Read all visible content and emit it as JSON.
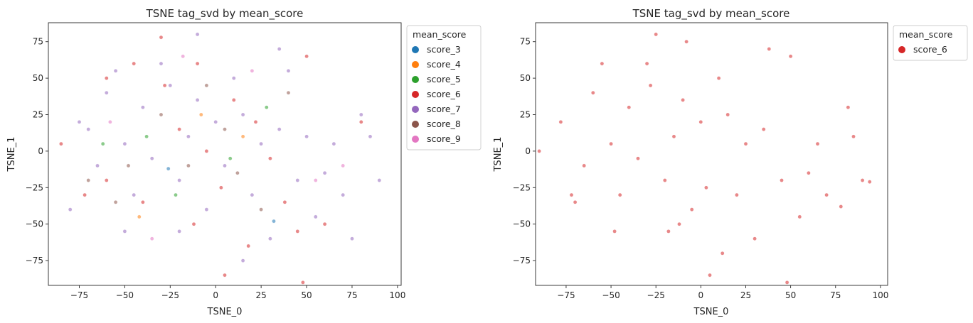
{
  "chart_data": [
    {
      "type": "scatter",
      "title": "TSNE tag_svd by mean_score",
      "xlabel": "TSNE_0",
      "ylabel": "TSNE_1",
      "xlim": [
        -92,
        102
      ],
      "ylim": [
        -92,
        88
      ],
      "xticks": [
        "−75",
        "−50",
        "−25",
        "0",
        "25",
        "50",
        "75",
        "100"
      ],
      "yticks": [
        "−75",
        "−50",
        "−25",
        "0",
        "25",
        "50",
        "75"
      ],
      "legend": {
        "title": "mean_score",
        "placement": "outside-upper-right",
        "entries": [
          {
            "label": "score_3",
            "color": "#1f77b4"
          },
          {
            "label": "score_4",
            "color": "#ff7f0e"
          },
          {
            "label": "score_5",
            "color": "#2ca02c"
          },
          {
            "label": "score_6",
            "color": "#d62728"
          },
          {
            "label": "score_7",
            "color": "#9467bd"
          },
          {
            "label": "score_8",
            "color": "#8c564b"
          },
          {
            "label": "score_9",
            "color": "#e377c2"
          }
        ]
      },
      "series": [
        {
          "name": "score_7",
          "color": "#9467bd",
          "points": [
            [
              -75,
              20
            ],
            [
              -70,
              15
            ],
            [
              -65,
              -10
            ],
            [
              -60,
              40
            ],
            [
              -55,
              55
            ],
            [
              -50,
              5
            ],
            [
              -45,
              -30
            ],
            [
              -40,
              30
            ],
            [
              -35,
              -5
            ],
            [
              -30,
              60
            ],
            [
              -25,
              45
            ],
            [
              -20,
              -20
            ],
            [
              -15,
              10
            ],
            [
              -10,
              35
            ],
            [
              -5,
              -40
            ],
            [
              0,
              20
            ],
            [
              5,
              -10
            ],
            [
              10,
              50
            ],
            [
              15,
              25
            ],
            [
              20,
              -30
            ],
            [
              25,
              5
            ],
            [
              30,
              -60
            ],
            [
              35,
              15
            ],
            [
              40,
              55
            ],
            [
              45,
              -20
            ],
            [
              50,
              10
            ],
            [
              55,
              -45
            ],
            [
              60,
              -15
            ],
            [
              65,
              5
            ],
            [
              70,
              -30
            ],
            [
              75,
              -60
            ],
            [
              80,
              25
            ],
            [
              85,
              10
            ],
            [
              90,
              -20
            ],
            [
              -80,
              -40
            ],
            [
              -50,
              -55
            ],
            [
              -20,
              -55
            ],
            [
              15,
              -75
            ],
            [
              35,
              70
            ],
            [
              -10,
              80
            ]
          ]
        },
        {
          "name": "score_6",
          "color": "#d62728",
          "points": [
            [
              -72,
              -30
            ],
            [
              -60,
              -20
            ],
            [
              -45,
              60
            ],
            [
              -40,
              -35
            ],
            [
              -28,
              45
            ],
            [
              -20,
              15
            ],
            [
              -12,
              -50
            ],
            [
              -5,
              0
            ],
            [
              3,
              -25
            ],
            [
              10,
              35
            ],
            [
              18,
              -65
            ],
            [
              22,
              20
            ],
            [
              30,
              -5
            ],
            [
              38,
              -35
            ],
            [
              45,
              -55
            ],
            [
              50,
              65
            ],
            [
              -30,
              78
            ],
            [
              -10,
              60
            ],
            [
              5,
              -85
            ],
            [
              48,
              -90
            ],
            [
              80,
              20
            ],
            [
              60,
              -50
            ],
            [
              -60,
              50
            ],
            [
              -85,
              5
            ]
          ]
        },
        {
          "name": "score_8",
          "color": "#8c564b",
          "points": [
            [
              -70,
              -20
            ],
            [
              -48,
              -10
            ],
            [
              -30,
              25
            ],
            [
              -15,
              -10
            ],
            [
              5,
              15
            ],
            [
              25,
              -40
            ],
            [
              40,
              40
            ],
            [
              -55,
              -35
            ],
            [
              12,
              -15
            ],
            [
              -5,
              45
            ]
          ]
        },
        {
          "name": "score_5",
          "color": "#2ca02c",
          "points": [
            [
              -62,
              5
            ],
            [
              -22,
              -30
            ],
            [
              8,
              -5
            ],
            [
              28,
              30
            ],
            [
              -38,
              10
            ]
          ]
        },
        {
          "name": "score_9",
          "color": "#e377c2",
          "points": [
            [
              -58,
              20
            ],
            [
              -18,
              65
            ],
            [
              20,
              55
            ],
            [
              55,
              -20
            ],
            [
              70,
              -10
            ],
            [
              -35,
              -60
            ]
          ]
        },
        {
          "name": "score_4",
          "color": "#ff7f0e",
          "points": [
            [
              -42,
              -45
            ],
            [
              15,
              10
            ],
            [
              -8,
              25
            ]
          ]
        },
        {
          "name": "score_3",
          "color": "#1f77b4",
          "points": [
            [
              -26,
              -12
            ],
            [
              32,
              -48
            ]
          ]
        }
      ]
    },
    {
      "type": "scatter",
      "title": "TSNE tag_svd by mean_score",
      "xlabel": "TSNE_0",
      "ylabel": "TSNE_1",
      "xlim": [
        -92,
        104
      ],
      "ylim": [
        -92,
        88
      ],
      "xticks": [
        "−75",
        "−50",
        "−25",
        "0",
        "25",
        "50",
        "75",
        "100"
      ],
      "yticks": [
        "−75",
        "−50",
        "−25",
        "0",
        "25",
        "50",
        "75"
      ],
      "legend": {
        "title": "mean_score",
        "placement": "outside-upper-right",
        "entries": [
          {
            "label": "score_6",
            "color": "#d62728"
          }
        ]
      },
      "series": [
        {
          "name": "score_6",
          "color": "#d62728",
          "points": [
            [
              -78,
              20
            ],
            [
              -72,
              -30
            ],
            [
              -70,
              -35
            ],
            [
              -65,
              -10
            ],
            [
              -60,
              40
            ],
            [
              -55,
              60
            ],
            [
              -50,
              5
            ],
            [
              -48,
              -55
            ],
            [
              -45,
              -30
            ],
            [
              -40,
              30
            ],
            [
              -35,
              -5
            ],
            [
              -30,
              60
            ],
            [
              -28,
              45
            ],
            [
              -25,
              80
            ],
            [
              -20,
              -20
            ],
            [
              -18,
              -55
            ],
            [
              -15,
              10
            ],
            [
              -12,
              -50
            ],
            [
              -10,
              35
            ],
            [
              -8,
              75
            ],
            [
              -5,
              -40
            ],
            [
              0,
              20
            ],
            [
              3,
              -25
            ],
            [
              5,
              -85
            ],
            [
              10,
              50
            ],
            [
              12,
              -70
            ],
            [
              15,
              25
            ],
            [
              20,
              -30
            ],
            [
              25,
              5
            ],
            [
              30,
              -60
            ],
            [
              35,
              15
            ],
            [
              38,
              70
            ],
            [
              45,
              -20
            ],
            [
              48,
              -90
            ],
            [
              50,
              65
            ],
            [
              55,
              -45
            ],
            [
              60,
              -15
            ],
            [
              65,
              5
            ],
            [
              70,
              -30
            ],
            [
              78,
              -38
            ],
            [
              82,
              30
            ],
            [
              85,
              10
            ],
            [
              90,
              -20
            ],
            [
              94,
              -21
            ],
            [
              -90,
              0
            ]
          ]
        }
      ]
    }
  ]
}
